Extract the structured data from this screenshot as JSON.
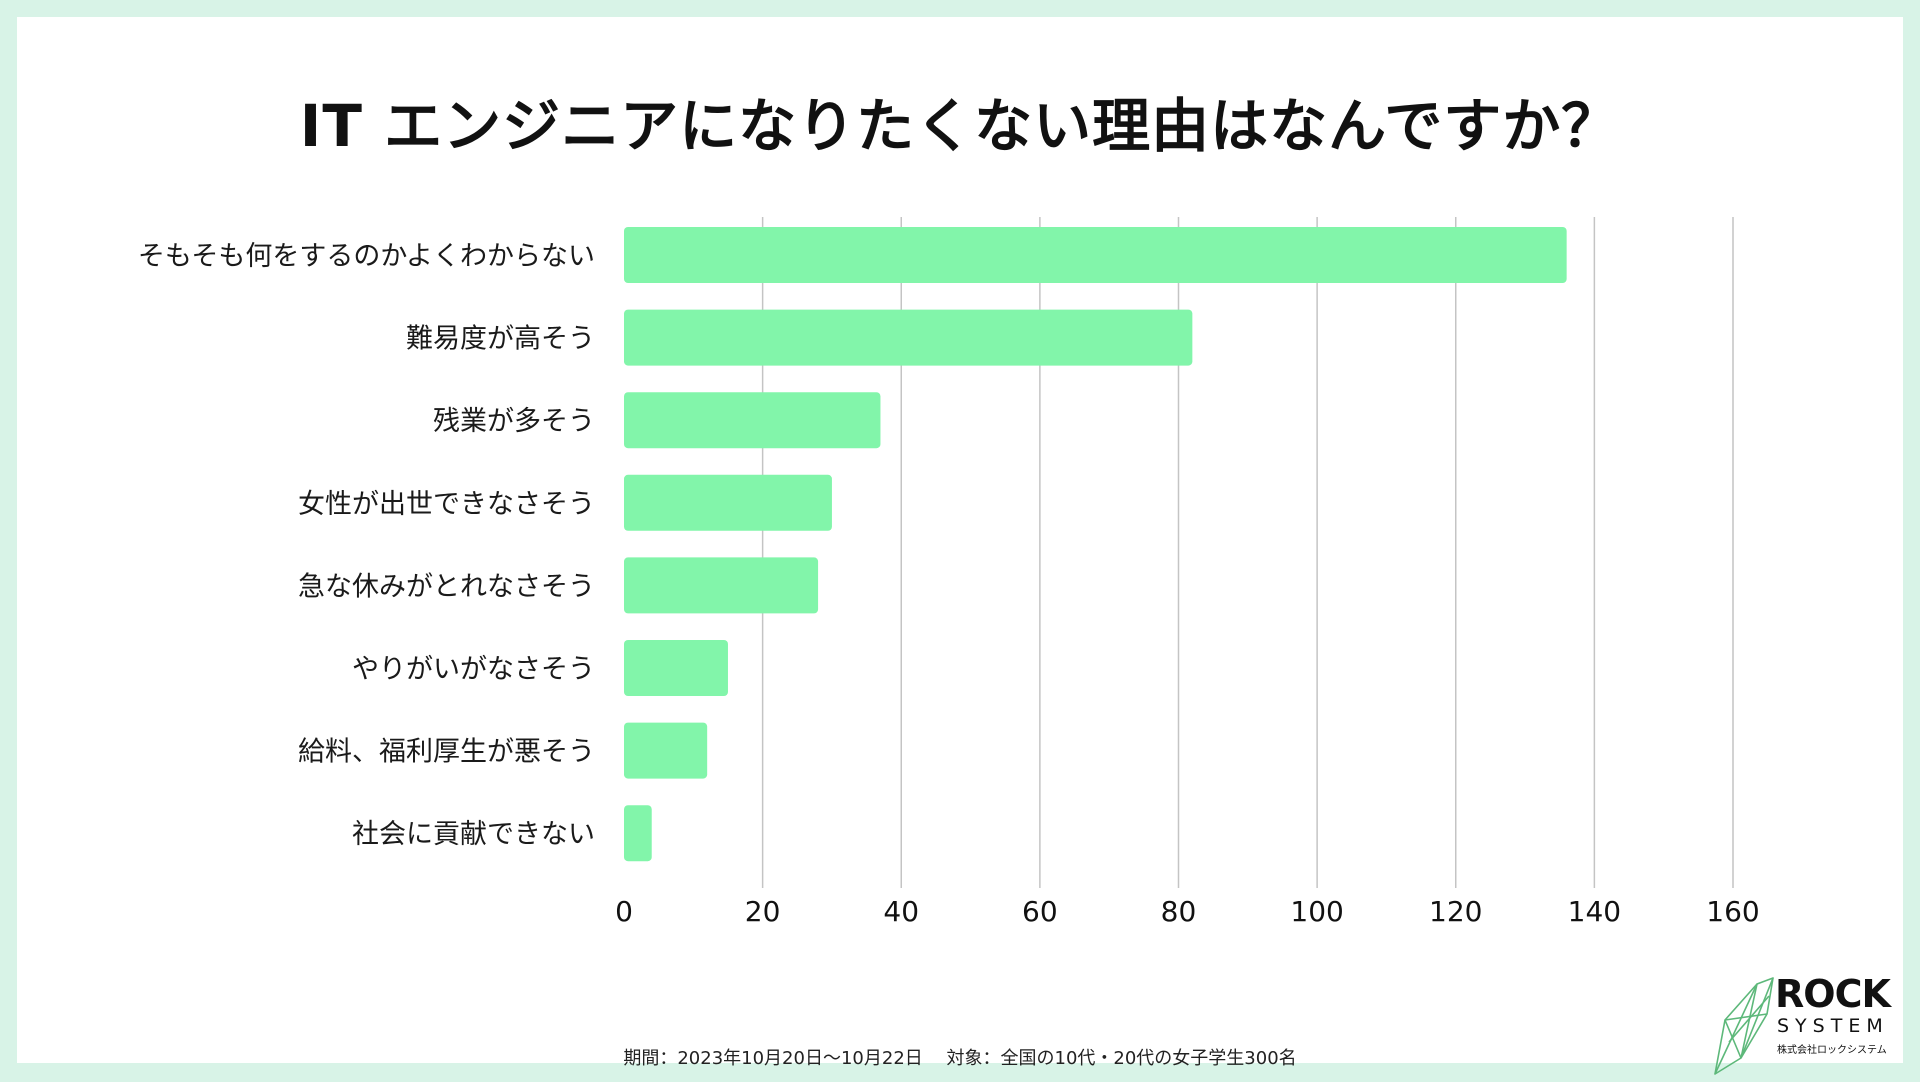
{
  "chart_data": {
    "type": "bar",
    "orientation": "horizontal",
    "title": "IT エンジニアになりたくない理由はなんですか？",
    "categories": [
      "そもそも何をするのかよくわからない",
      "難易度が高そう",
      "残業が多そう",
      "女性が出世できなさそう",
      "急な休みがとれなさそう",
      "やりがいがなさそう",
      "給料、福利厚生が悪そう",
      "社会に貢献できない"
    ],
    "values": [
      136,
      82,
      37,
      30,
      28,
      15,
      12,
      4
    ],
    "xlim": [
      0,
      160
    ],
    "xticks": [
      0,
      20,
      40,
      60,
      80,
      100,
      120,
      140,
      160
    ],
    "grid": true,
    "legend": "none",
    "bar_color": "#82f5aa",
    "grid_color": "#c4c4c4"
  },
  "footnote": "期間：2023年10月20日〜10月22日　 対象：全国の10代・20代の女子学生300名",
  "logo": {
    "line1": "ROCK",
    "line2": "SYSTEM",
    "company": "株式会社ロックシステム",
    "color": "#5db87a"
  }
}
